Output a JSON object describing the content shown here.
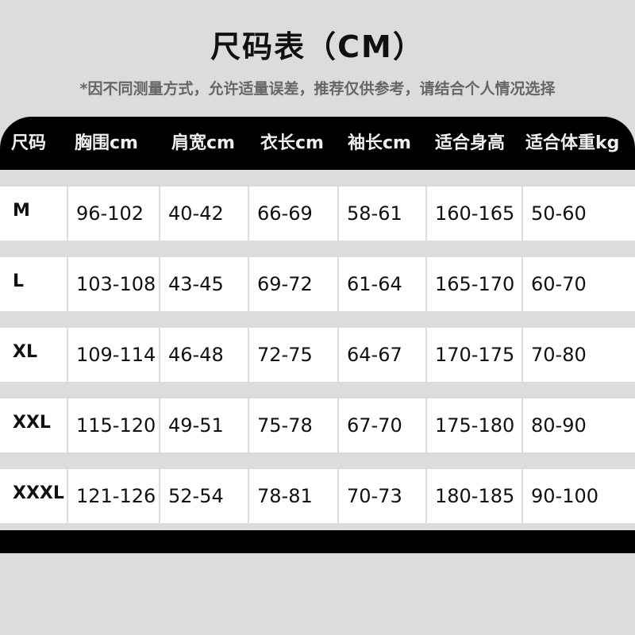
{
  "title": "尺码表（CM）",
  "note": "*因不同测量方式，允许适量误差，推荐仅供参考，请结合个人情况选择",
  "columns": [
    "尺码",
    "胸围cm",
    "肩宽cm",
    "衣长cm",
    "袖长cm",
    "适合身高",
    "适合体重kg"
  ],
  "rows": [
    [
      "M",
      "96-102",
      "40-42",
      "66-69",
      "58-61",
      "160-165",
      "50-60"
    ],
    [
      "L",
      "103-108",
      "43-45",
      "69-72",
      "61-64",
      "165-170",
      "60-70"
    ],
    [
      "XL",
      "109-114",
      "46-48",
      "72-75",
      "64-67",
      "170-175",
      "70-80"
    ],
    [
      "XXL",
      "115-120",
      "49-51",
      "75-78",
      "67-70",
      "175-180",
      "80-90"
    ],
    [
      "XXXL",
      "121-126",
      "52-54",
      "78-81",
      "70-73",
      "180-185",
      "90-100"
    ]
  ],
  "colors": {
    "background": "#dcdcdc",
    "header": "#000000",
    "cell": "#ffffff"
  }
}
